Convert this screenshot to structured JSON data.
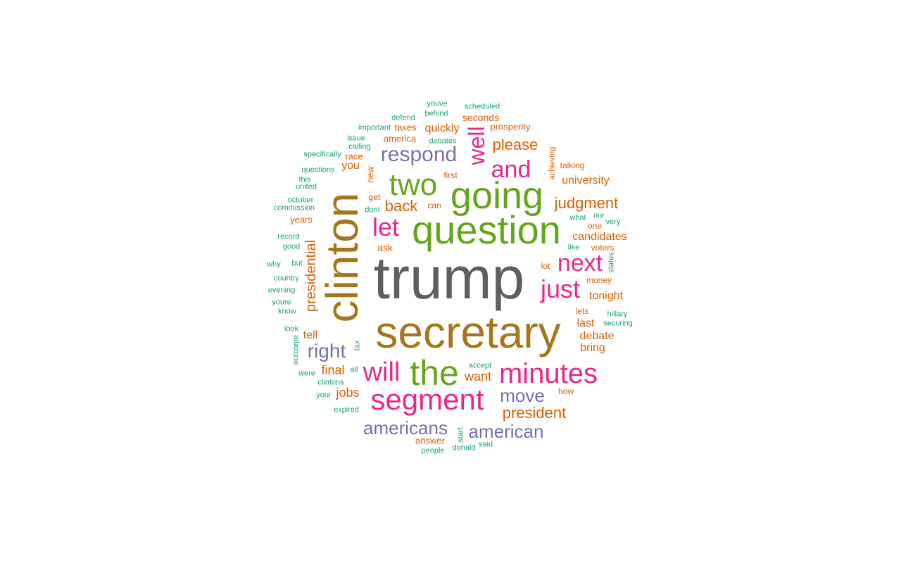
{
  "palette": {
    "gray": "#5f5f5f",
    "gold": "#a6761d",
    "green": "#66a61e",
    "pink": "#e7298a",
    "purple": "#7570b3",
    "orange": "#d95f02",
    "teal": "#1b9e77"
  },
  "words": [
    {
      "text": "trump",
      "color": "gray"
    },
    {
      "text": "secretary",
      "color": "gold"
    },
    {
      "text": "clinton",
      "color": "gold"
    },
    {
      "text": "question",
      "color": "green"
    },
    {
      "text": "going",
      "color": "green"
    },
    {
      "text": "the",
      "color": "green"
    },
    {
      "text": "two",
      "color": "green"
    },
    {
      "text": "segment",
      "color": "pink"
    },
    {
      "text": "minutes",
      "color": "pink"
    },
    {
      "text": "will",
      "color": "pink"
    },
    {
      "text": "and",
      "color": "pink"
    },
    {
      "text": "let",
      "color": "pink"
    },
    {
      "text": "next",
      "color": "pink"
    },
    {
      "text": "just",
      "color": "pink"
    },
    {
      "text": "well",
      "color": "pink"
    },
    {
      "text": "respond",
      "color": "purple"
    },
    {
      "text": "americans",
      "color": "purple"
    },
    {
      "text": "american",
      "color": "purple"
    },
    {
      "text": "move",
      "color": "purple"
    },
    {
      "text": "right",
      "color": "purple"
    },
    {
      "text": "president",
      "color": "orange"
    },
    {
      "text": "judgment",
      "color": "orange"
    },
    {
      "text": "please",
      "color": "orange"
    },
    {
      "text": "presidential",
      "color": "orange"
    },
    {
      "text": "back",
      "color": "orange"
    },
    {
      "text": "university",
      "color": "orange"
    },
    {
      "text": "candidates",
      "color": "orange"
    },
    {
      "text": "tonight",
      "color": "orange"
    },
    {
      "text": "debate",
      "color": "orange"
    },
    {
      "text": "want",
      "color": "orange"
    },
    {
      "text": "jobs",
      "color": "orange"
    },
    {
      "text": "final",
      "color": "orange"
    },
    {
      "text": "quickly",
      "color": "orange"
    },
    {
      "text": "bring",
      "color": "orange"
    },
    {
      "text": "last",
      "color": "orange"
    },
    {
      "text": "tell",
      "color": "orange"
    },
    {
      "text": "you",
      "color": "orange"
    },
    {
      "text": "new",
      "color": "orange"
    },
    {
      "text": "seconds",
      "color": "orange"
    },
    {
      "text": "taxes",
      "color": "orange"
    },
    {
      "text": "america",
      "color": "orange"
    },
    {
      "text": "prosperity",
      "color": "orange"
    },
    {
      "text": "race",
      "color": "orange"
    },
    {
      "text": "ask",
      "color": "orange"
    },
    {
      "text": "years",
      "color": "orange"
    },
    {
      "text": "answer",
      "color": "orange"
    },
    {
      "text": "talking",
      "color": "orange"
    },
    {
      "text": "one",
      "color": "orange"
    },
    {
      "text": "voters",
      "color": "orange"
    },
    {
      "text": "money",
      "color": "orange"
    },
    {
      "text": "lets",
      "color": "orange"
    },
    {
      "text": "lot",
      "color": "orange"
    },
    {
      "text": "how",
      "color": "orange"
    },
    {
      "text": "first",
      "color": "orange"
    },
    {
      "text": "get",
      "color": "orange"
    },
    {
      "text": "can",
      "color": "orange"
    },
    {
      "text": "achieving",
      "color": "orange"
    },
    {
      "text": "scheduled",
      "color": "teal"
    },
    {
      "text": "youve",
      "color": "teal"
    },
    {
      "text": "behind",
      "color": "teal"
    },
    {
      "text": "defend",
      "color": "teal"
    },
    {
      "text": "important",
      "color": "teal"
    },
    {
      "text": "issue",
      "color": "teal"
    },
    {
      "text": "debates",
      "color": "teal"
    },
    {
      "text": "calling",
      "color": "teal"
    },
    {
      "text": "specifically",
      "color": "teal"
    },
    {
      "text": "questions",
      "color": "teal"
    },
    {
      "text": "this",
      "color": "teal"
    },
    {
      "text": "united",
      "color": "teal"
    },
    {
      "text": "october",
      "color": "teal"
    },
    {
      "text": "commission",
      "color": "teal"
    },
    {
      "text": "dont",
      "color": "teal"
    },
    {
      "text": "record",
      "color": "teal"
    },
    {
      "text": "good",
      "color": "teal"
    },
    {
      "text": "why",
      "color": "teal"
    },
    {
      "text": "but",
      "color": "teal"
    },
    {
      "text": "country",
      "color": "teal"
    },
    {
      "text": "evening",
      "color": "teal"
    },
    {
      "text": "youre",
      "color": "teal"
    },
    {
      "text": "know",
      "color": "teal"
    },
    {
      "text": "look",
      "color": "teal"
    },
    {
      "text": "outcome",
      "color": "teal"
    },
    {
      "text": "tax",
      "color": "teal"
    },
    {
      "text": "were",
      "color": "teal"
    },
    {
      "text": "all",
      "color": "teal"
    },
    {
      "text": "clintons",
      "color": "teal"
    },
    {
      "text": "your",
      "color": "teal"
    },
    {
      "text": "expired",
      "color": "teal"
    },
    {
      "text": "accept",
      "color": "teal"
    },
    {
      "text": "start",
      "color": "teal"
    },
    {
      "text": "people",
      "color": "teal"
    },
    {
      "text": "donald",
      "color": "teal"
    },
    {
      "text": "said",
      "color": "teal"
    },
    {
      "text": "what",
      "color": "teal"
    },
    {
      "text": "our",
      "color": "teal"
    },
    {
      "text": "very",
      "color": "teal"
    },
    {
      "text": "like",
      "color": "teal"
    },
    {
      "text": "states",
      "color": "teal"
    },
    {
      "text": "hillary",
      "color": "teal"
    },
    {
      "text": "securing",
      "color": "teal"
    }
  ]
}
